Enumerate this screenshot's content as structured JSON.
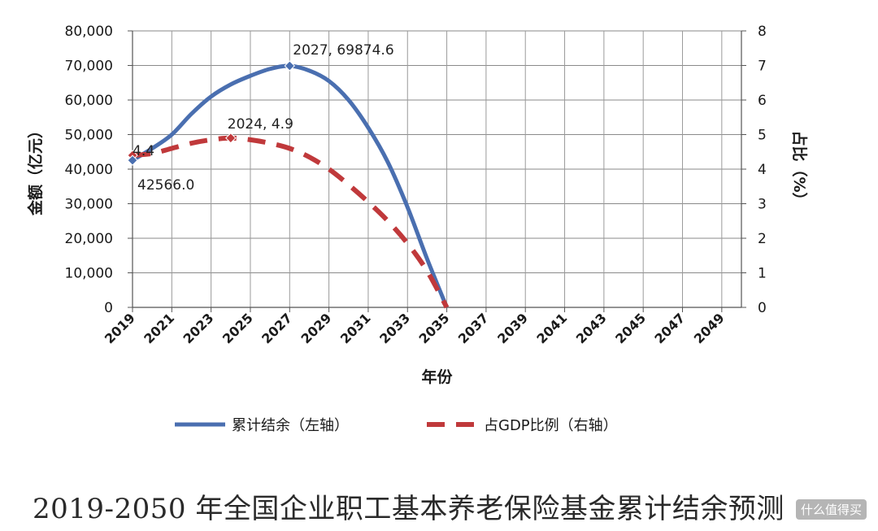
{
  "chart_data": {
    "type": "line",
    "title": "",
    "xlabel": "年份",
    "ylabel_left": "金额（亿元）",
    "ylabel_right": "占比（%）",
    "x_ticks": [
      "2019",
      "2021",
      "2023",
      "2025",
      "2027",
      "2029",
      "2031",
      "2033",
      "2035",
      "2037",
      "2039",
      "2041",
      "2043",
      "2045",
      "2047",
      "2049"
    ],
    "xlim": [
      2019,
      2050
    ],
    "ylim_left": [
      0,
      80000
    ],
    "ylim_right": [
      0,
      8
    ],
    "y_ticks_left": [
      "0",
      "10,000",
      "20,000",
      "30,000",
      "40,000",
      "50,000",
      "60,000",
      "70,000",
      "80,000"
    ],
    "y_ticks_right": [
      "0",
      "1",
      "2",
      "3",
      "4",
      "5",
      "6",
      "7",
      "8"
    ],
    "grid": true,
    "legend_position": "bottom",
    "series": [
      {
        "name": "累计结余（左轴）",
        "axis": "left",
        "style": "solid",
        "color": "#4a6fb0",
        "x": [
          2019,
          2020,
          2021,
          2022,
          2023,
          2024,
          2025,
          2026,
          2027,
          2028,
          2029,
          2030,
          2031,
          2032,
          2033,
          2034,
          2035
        ],
        "y": [
          42566.0,
          46000,
          50000,
          56000,
          61000,
          64500,
          67000,
          69000,
          69874.6,
          68500,
          65500,
          60000,
          52000,
          42000,
          29000,
          14000,
          0
        ]
      },
      {
        "name": "占GDP比例（右轴）",
        "axis": "right",
        "style": "dashed",
        "color": "#c0393b",
        "x": [
          2019,
          2020,
          2021,
          2022,
          2023,
          2024,
          2025,
          2026,
          2027,
          2028,
          2029,
          2030,
          2031,
          2032,
          2033,
          2034,
          2035
        ],
        "y": [
          4.4,
          4.45,
          4.6,
          4.75,
          4.85,
          4.9,
          4.85,
          4.75,
          4.6,
          4.35,
          4.0,
          3.55,
          3.05,
          2.5,
          1.85,
          1.05,
          0
        ]
      }
    ],
    "annotations": [
      {
        "series": 0,
        "x": 2027,
        "y": 69874.6,
        "text": "2027, 69874.6",
        "marker": "diamond"
      },
      {
        "series": 1,
        "x": 2024,
        "y": 4.9,
        "text": "2024, 4.9",
        "marker": "diamond"
      },
      {
        "series": 1,
        "x": 2019,
        "y": 4.4,
        "text": "4.4",
        "marker": "diamond"
      },
      {
        "series": 0,
        "x": 2019,
        "y": 42566.0,
        "text": "42566.0",
        "marker": "diamond"
      }
    ]
  },
  "caption": "2019-2050 年全国企业职工基本养老保险基金累计结余预测",
  "watermark": "什么值得买"
}
